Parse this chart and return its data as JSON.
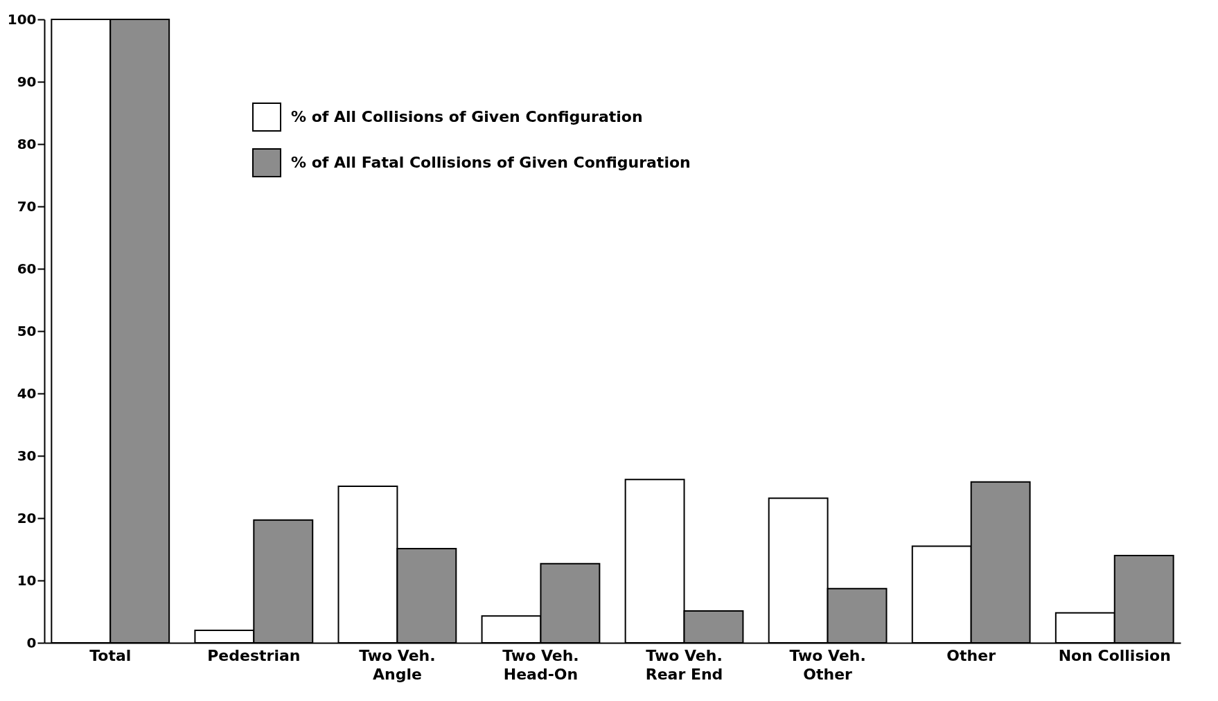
{
  "chart_data": {
    "type": "bar",
    "categories": [
      "Total",
      "Pedestrian",
      "Two Veh.\nAngle",
      "Two Veh.\nHead-On",
      "Two Veh.\nRear End",
      "Two Veh.\nOther",
      "Other",
      "Non Collision"
    ],
    "series": [
      {
        "name": "% of All Collisions of Given Configuration",
        "color": "#ffffff",
        "values": [
          100,
          2,
          25.1,
          4.3,
          26.2,
          23.2,
          15.5,
          4.8
        ]
      },
      {
        "name": "% of All Fatal Collisions of Given Configuration",
        "color": "#8c8c8c",
        "values": [
          100,
          19.7,
          15.1,
          12.7,
          5.1,
          8.7,
          25.8,
          14.0
        ]
      }
    ],
    "ylim": [
      0,
      100
    ],
    "yticks": [
      0,
      10,
      20,
      30,
      40,
      50,
      60,
      70,
      80,
      90,
      100
    ],
    "grid": false,
    "legend": "top left"
  }
}
